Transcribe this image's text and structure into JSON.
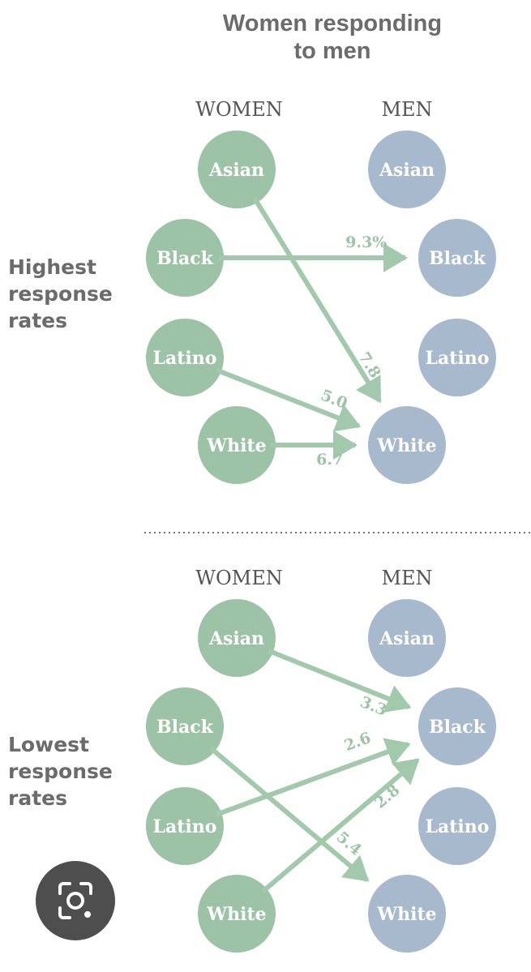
{
  "title": "Women responding\nto men",
  "sections": [
    {
      "label": "Highest\nresponse\nrates",
      "women_header": "WOMEN",
      "men_header": "MEN",
      "women": [
        "Asian",
        "Black",
        "Latino",
        "White"
      ],
      "men": [
        "Asian",
        "Black",
        "Latino",
        "White"
      ],
      "links": [
        {
          "from": "Asian",
          "to": "White",
          "value": "7.8"
        },
        {
          "from": "Black",
          "to": "Black",
          "value": "9.3%"
        },
        {
          "from": "Latino",
          "to": "White",
          "value": "5.0"
        },
        {
          "from": "White",
          "to": "White",
          "value": "6.7"
        }
      ]
    },
    {
      "label": "Lowest\nresponse\nrates",
      "women_header": "WOMEN",
      "men_header": "MEN",
      "women": [
        "Asian",
        "Black",
        "Latino",
        "White"
      ],
      "men": [
        "Asian",
        "Black",
        "Latino",
        "White"
      ],
      "links": [
        {
          "from": "Asian",
          "to": "Black",
          "value": "3.3"
        },
        {
          "from": "Latino",
          "to": "Black",
          "value": "2.6"
        },
        {
          "from": "White",
          "to": "Black",
          "value": "2.8"
        },
        {
          "from": "Black",
          "to": "White",
          "value": "5.4"
        }
      ]
    }
  ],
  "colors": {
    "women": "#9dc3a6",
    "men": "#a7b9cc",
    "arrow": "#a3c9ac",
    "value_text": "#9cc4a5",
    "header_text": "#555555",
    "node_text": "#ffffff",
    "divider": "#777777"
  },
  "icons": {
    "lens": "camera-lens-icon"
  }
}
